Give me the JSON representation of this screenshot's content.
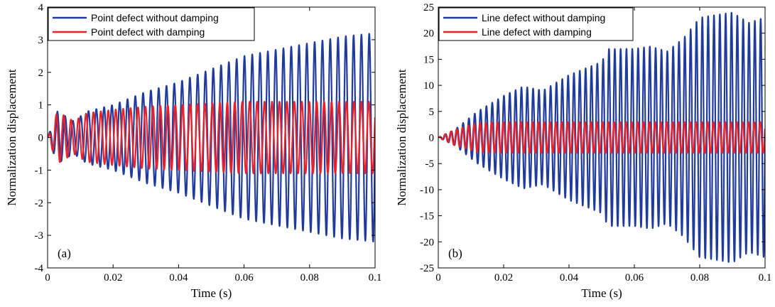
{
  "colors": {
    "no_damping": "#1f3b9c",
    "with_damping": "#e8212b"
  },
  "chart_data": [
    {
      "type": "line",
      "panel_label": "(a)",
      "xlabel": "Time (s)",
      "ylabel": "Normalization displacement",
      "xlim": [
        0,
        0.1
      ],
      "ylim": [
        -4,
        4
      ],
      "xticks": [
        "0",
        "0.02",
        "0.04",
        "0.06",
        "0.08",
        "0.1"
      ],
      "xtick_values": [
        0,
        0.02,
        0.04,
        0.06,
        0.08,
        0.1
      ],
      "yticks": [
        "4",
        "3",
        "2",
        "1",
        "0",
        "-1",
        "-2",
        "-3",
        "-4"
      ],
      "ytick_values": [
        4,
        3,
        2,
        1,
        0,
        -1,
        -2,
        -3,
        -4
      ],
      "legend_position": "top-left",
      "series": [
        {
          "name": "Point defect without damping",
          "color_key": "no_damping",
          "envelope_t": [
            0,
            0.003,
            0.008,
            0.012,
            0.02,
            0.03,
            0.04,
            0.05,
            0.06,
            0.07,
            0.08,
            0.09,
            0.1
          ],
          "envelope_amp": [
            0,
            0.8,
            0.5,
            0.8,
            1.0,
            1.4,
            1.7,
            2.1,
            2.5,
            2.7,
            2.9,
            3.1,
            3.2
          ],
          "frequency_hz": 420
        },
        {
          "name": "Point defect with damping",
          "color_key": "with_damping",
          "envelope_t": [
            0,
            0.003,
            0.008,
            0.012,
            0.02,
            0.03,
            0.04,
            0.05,
            0.06,
            0.07,
            0.08,
            0.09,
            0.1
          ],
          "envelope_amp": [
            0,
            0.8,
            0.5,
            0.75,
            0.85,
            0.95,
            1.0,
            1.05,
            1.1,
            1.1,
            1.1,
            1.1,
            1.1
          ],
          "frequency_hz": 440
        }
      ]
    },
    {
      "type": "line",
      "panel_label": "(b)",
      "xlabel": "Time (s)",
      "ylabel": "Normalization displacement",
      "xlim": [
        0,
        0.1
      ],
      "ylim": [
        -25,
        25
      ],
      "xticks": [
        "0",
        "0.02",
        "0.04",
        "0.06",
        "0.08",
        "0.1"
      ],
      "xtick_values": [
        0,
        0.02,
        0.04,
        0.06,
        0.08,
        0.1
      ],
      "yticks": [
        "25",
        "20",
        "15",
        "10",
        "5",
        "0",
        "-5",
        "-10",
        "-15",
        "-20",
        "-25"
      ],
      "ytick_values": [
        25,
        20,
        15,
        10,
        5,
        0,
        -5,
        -10,
        -15,
        -20,
        -25
      ],
      "legend_position": "top-left",
      "series": [
        {
          "name": "Line defect without damping",
          "color_key": "no_damping",
          "envelope_t": [
            0,
            0.005,
            0.012,
            0.02,
            0.026,
            0.032,
            0.04,
            0.05,
            0.052,
            0.06,
            0.065,
            0.07,
            0.075,
            0.08,
            0.085,
            0.09,
            0.095,
            0.1
          ],
          "envelope_amp": [
            0,
            1.5,
            5,
            8,
            9.8,
            9,
            12,
            14.5,
            17,
            17,
            17.5,
            16.5,
            19,
            23,
            23.5,
            24,
            22,
            23
          ],
          "frequency_hz": 560
        },
        {
          "name": "Line defect with damping",
          "color_key": "with_damping",
          "envelope_t": [
            0,
            0.005,
            0.012,
            0.02,
            0.1
          ],
          "envelope_amp": [
            0,
            1.5,
            2.8,
            3.0,
            3.0
          ],
          "frequency_hz": 560
        }
      ]
    }
  ]
}
